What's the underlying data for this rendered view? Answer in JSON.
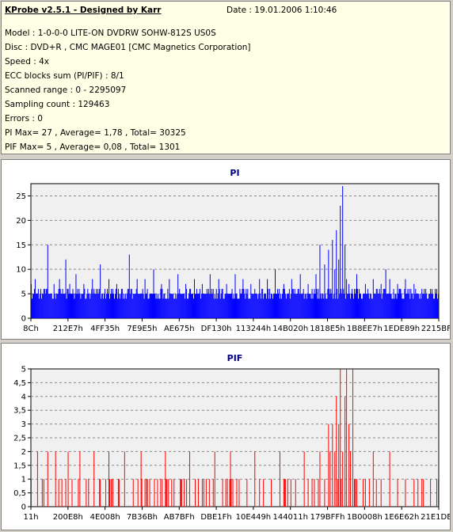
{
  "info": {
    "title": "KProbe v2.5.1 - Designed by Karr",
    "date": "Date : 19.01.2006 1:10:46",
    "lines": [
      "Model : 1-0-0-0 LITE-ON DVDRW SOHW-812S  US0S",
      "Disc : DVD+R , CMC MAGE01 [CMC Magnetics Corporation]",
      "Speed : 4x",
      "ECC blocks sum (PI/PIF) : 8/1",
      "Scanned range : 0 - 2295097",
      "Sampling count : 129463",
      "Errors : 0",
      "PI Max= 27 , Average= 1,78 , Total= 30325",
      "PIF Max= 5 , Average= 0,08 , Total= 1301"
    ]
  },
  "colors": {
    "pi": "#0000ff",
    "pif": "#ff0000",
    "title": "#000080",
    "plot_bg": "#f0f0f0",
    "grid": "#888888"
  },
  "chart_data": [
    {
      "type": "bar",
      "title": "PI",
      "xlabel": "",
      "ylabel": "",
      "ylim": [
        0,
        27.5
      ],
      "yticks": [
        0,
        5,
        10,
        15,
        20,
        25
      ],
      "xticks": [
        "8Ch",
        "212E7h",
        "4FF35h",
        "7E9E5h",
        "AE675h",
        "DF130h",
        "113244h",
        "14B020h",
        "1818E5h",
        "1B8EE7h",
        "1EDE89h",
        "2215BFh"
      ],
      "grid": "horizontal",
      "max": 27,
      "average": 1.78,
      "series": [
        {
          "baseline": 4,
          "n": 520,
          "noise_max": 2,
          "spikes": [
            [
              0.0,
              7
            ],
            [
              0.01,
              8
            ],
            [
              0.03,
              6
            ],
            [
              0.04,
              15
            ],
            [
              0.055,
              7
            ],
            [
              0.07,
              8
            ],
            [
              0.085,
              12
            ],
            [
              0.095,
              7
            ],
            [
              0.11,
              9
            ],
            [
              0.13,
              7
            ],
            [
              0.15,
              8
            ],
            [
              0.17,
              11
            ],
            [
              0.19,
              8
            ],
            [
              0.21,
              7
            ],
            [
              0.24,
              13
            ],
            [
              0.26,
              8
            ],
            [
              0.28,
              8
            ],
            [
              0.3,
              10
            ],
            [
              0.32,
              7
            ],
            [
              0.34,
              8
            ],
            [
              0.36,
              9
            ],
            [
              0.38,
              7
            ],
            [
              0.4,
              8
            ],
            [
              0.42,
              7
            ],
            [
              0.44,
              9
            ],
            [
              0.46,
              8
            ],
            [
              0.48,
              7
            ],
            [
              0.5,
              9
            ],
            [
              0.52,
              8
            ],
            [
              0.54,
              7
            ],
            [
              0.56,
              8
            ],
            [
              0.58,
              8
            ],
            [
              0.6,
              10
            ],
            [
              0.62,
              7
            ],
            [
              0.64,
              8
            ],
            [
              0.66,
              9
            ],
            [
              0.68,
              7
            ],
            [
              0.7,
              9
            ],
            [
              0.71,
              15
            ],
            [
              0.72,
              11
            ],
            [
              0.73,
              14
            ],
            [
              0.74,
              16
            ],
            [
              0.745,
              10
            ],
            [
              0.75,
              18
            ],
            [
              0.755,
              12
            ],
            [
              0.76,
              23
            ],
            [
              0.765,
              27
            ],
            [
              0.77,
              15
            ],
            [
              0.775,
              8
            ],
            [
              0.78,
              7
            ],
            [
              0.8,
              9
            ],
            [
              0.82,
              7
            ],
            [
              0.84,
              8
            ],
            [
              0.86,
              7
            ],
            [
              0.87,
              10
            ],
            [
              0.88,
              8
            ],
            [
              0.9,
              7
            ],
            [
              0.92,
              8
            ],
            [
              0.94,
              7
            ],
            [
              0.96,
              6
            ],
            [
              0.98,
              6
            ],
            [
              1.0,
              5
            ]
          ]
        }
      ]
    },
    {
      "type": "bar",
      "title": "PIF",
      "xlabel": "",
      "ylabel": "",
      "ylim": [
        0,
        5
      ],
      "yticks": [
        0,
        0.5,
        1,
        1.5,
        2,
        2.5,
        3,
        3.5,
        4,
        4.5,
        5
      ],
      "xticks": [
        "11h",
        "200E8h",
        "4E008h",
        "7B36Bh",
        "AB7BFh",
        "DBE1Fh",
        "10E449h",
        "144011h",
        "179BFFh",
        "1B0008h",
        "1E6E62h",
        "21E1DEh"
      ],
      "grid": "horizontal",
      "max": 5,
      "average": 0.08,
      "series": [
        {
          "n": 520,
          "spikes": [
            [
              0.0,
              1
            ],
            [
              0.015,
              2
            ],
            [
              0.03,
              1
            ],
            [
              0.04,
              2
            ],
            [
              0.06,
              2
            ],
            [
              0.075,
              1
            ],
            [
              0.09,
              2
            ],
            [
              0.1,
              1
            ],
            [
              0.12,
              2
            ],
            [
              0.14,
              1
            ],
            [
              0.155,
              2
            ],
            [
              0.17,
              1
            ],
            [
              0.19,
              2
            ],
            [
              0.2,
              1
            ],
            [
              0.215,
              1
            ],
            [
              0.23,
              2
            ],
            [
              0.25,
              1
            ],
            [
              0.27,
              2
            ],
            [
              0.29,
              1
            ],
            [
              0.31,
              1
            ],
            [
              0.33,
              2
            ],
            [
              0.35,
              1
            ],
            [
              0.37,
              1
            ],
            [
              0.39,
              2
            ],
            [
              0.41,
              1
            ],
            [
              0.43,
              1
            ],
            [
              0.45,
              2
            ],
            [
              0.47,
              1
            ],
            [
              0.49,
              2
            ],
            [
              0.51,
              1
            ],
            [
              0.53,
              1
            ],
            [
              0.55,
              2
            ],
            [
              0.57,
              1
            ],
            [
              0.59,
              1
            ],
            [
              0.61,
              2
            ],
            [
              0.63,
              1
            ],
            [
              0.65,
              1
            ],
            [
              0.67,
              2
            ],
            [
              0.69,
              1
            ],
            [
              0.71,
              2
            ],
            [
              0.72,
              1
            ],
            [
              0.73,
              3
            ],
            [
              0.735,
              2
            ],
            [
              0.74,
              3
            ],
            [
              0.745,
              2
            ],
            [
              0.75,
              4
            ],
            [
              0.755,
              3
            ],
            [
              0.76,
              5
            ],
            [
              0.765,
              2
            ],
            [
              0.77,
              4
            ],
            [
              0.775,
              5
            ],
            [
              0.78,
              3
            ],
            [
              0.785,
              2
            ],
            [
              0.79,
              5
            ],
            [
              0.795,
              1
            ],
            [
              0.8,
              1
            ],
            [
              0.82,
              1
            ],
            [
              0.84,
              2
            ],
            [
              0.86,
              1
            ],
            [
              0.88,
              2
            ],
            [
              0.9,
              1
            ],
            [
              0.92,
              1
            ],
            [
              0.94,
              1
            ],
            [
              0.96,
              1
            ],
            [
              0.98,
              1
            ],
            [
              1.0,
              1
            ]
          ]
        }
      ]
    }
  ]
}
